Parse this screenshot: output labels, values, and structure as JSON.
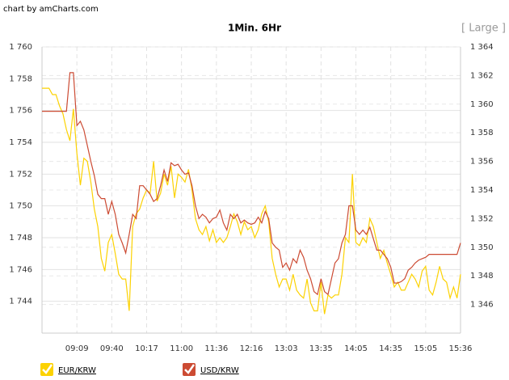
{
  "credit": "chart by amCharts.com",
  "size_button": "[ Large ]",
  "chart_data": {
    "type": "line",
    "title": "1Min. 6Hr",
    "categories": [
      null,
      null,
      null,
      null,
      null,
      null,
      null,
      null,
      null,
      null,
      "09:09",
      null,
      null,
      null,
      null,
      null,
      null,
      null,
      null,
      null,
      "09:40",
      null,
      null,
      null,
      null,
      null,
      null,
      null,
      null,
      null,
      "10:17",
      null,
      null,
      null,
      null,
      null,
      null,
      null,
      null,
      null,
      "11:00",
      null,
      null,
      null,
      null,
      null,
      null,
      null,
      null,
      null,
      "11:36",
      null,
      null,
      null,
      null,
      null,
      null,
      null,
      null,
      null,
      "12:16",
      null,
      null,
      null,
      null,
      null,
      null,
      null,
      null,
      null,
      "13:03",
      null,
      null,
      null,
      null,
      null,
      null,
      null,
      null,
      null,
      "13:35",
      null,
      null,
      null,
      null,
      null,
      null,
      null,
      null,
      null,
      "14:05",
      null,
      null,
      null,
      null,
      null,
      null,
      null,
      null,
      null,
      "14:35",
      null,
      null,
      null,
      null,
      null,
      null,
      null,
      null,
      null,
      "15:05",
      null,
      null,
      null,
      null,
      null,
      null,
      null,
      null,
      null,
      "15:36"
    ],
    "ylim": [
      1742,
      1760
    ],
    "yticks": [
      {
        "value": 1760,
        "label": "1 760"
      },
      {
        "value": 1758,
        "label": "1 758"
      },
      {
        "value": 1756,
        "label": "1 756"
      },
      {
        "value": 1754,
        "label": "1 754"
      },
      {
        "value": 1752,
        "label": "1 752"
      },
      {
        "value": 1750,
        "label": "1 750"
      },
      {
        "value": 1748,
        "label": "1 748"
      },
      {
        "value": 1746,
        "label": "1 746"
      },
      {
        "value": 1744,
        "label": "1 744"
      }
    ],
    "y2lim": [
      1344,
      1364
    ],
    "y2ticks": [
      {
        "value": 1364,
        "label": "1 364"
      },
      {
        "value": 1362,
        "label": "1 362"
      },
      {
        "value": 1360,
        "label": "1 360"
      },
      {
        "value": 1358,
        "label": "1 358"
      },
      {
        "value": 1356,
        "label": "1 356"
      },
      {
        "value": 1354,
        "label": "1 354"
      },
      {
        "value": 1352,
        "label": "1 352"
      },
      {
        "value": 1350,
        "label": "1 350"
      },
      {
        "value": 1348,
        "label": "1 348"
      },
      {
        "value": 1346,
        "label": "1 346"
      }
    ],
    "grid": true,
    "series": [
      {
        "name": "EUR/KRW",
        "color": "#fcd202",
        "values": [
          1757.4,
          1757.4,
          1757.4,
          1757.0,
          1757.0,
          1756.3,
          1755.8,
          1754.8,
          1754.1,
          1756.1,
          1753.3,
          1751.3,
          1753.0,
          1752.8,
          1751.5,
          1749.8,
          1748.7,
          1746.7,
          1745.9,
          1747.7,
          1748.2,
          1747.0,
          1745.7,
          1745.4,
          1745.4,
          1743.4,
          1748.7,
          1749.5,
          1749.8,
          1750.5,
          1751.0,
          1750.8,
          1752.8,
          1750.3,
          1750.8,
          1752.0,
          1751.3,
          1752.5,
          1750.5,
          1752.0,
          1751.8,
          1751.5,
          1752.3,
          1751.0,
          1749.2,
          1748.5,
          1748.2,
          1748.7,
          1747.8,
          1748.5,
          1747.7,
          1748.0,
          1747.7,
          1748.0,
          1748.7,
          1749.5,
          1749.0,
          1748.2,
          1749.0,
          1748.5,
          1748.7,
          1748.0,
          1748.5,
          1749.5,
          1750.0,
          1749.0,
          1746.7,
          1745.7,
          1744.9,
          1745.4,
          1745.4,
          1744.7,
          1745.7,
          1744.7,
          1744.4,
          1744.2,
          1745.4,
          1743.9,
          1743.4,
          1743.4,
          1745.2,
          1743.2,
          1744.4,
          1744.2,
          1744.4,
          1744.4,
          1745.7,
          1748.0,
          1747.7,
          1752.0,
          1747.7,
          1747.5,
          1748.0,
          1747.7,
          1749.2,
          1748.7,
          1747.7,
          1746.7,
          1747.2,
          1746.4,
          1745.7,
          1744.9,
          1745.2,
          1744.7,
          1744.7,
          1745.2,
          1745.7,
          1745.4,
          1744.9,
          1745.9,
          1746.2,
          1744.7,
          1744.4,
          1745.2,
          1746.2,
          1745.4,
          1745.2,
          1744.2,
          1744.9,
          1744.2,
          1745.7
        ]
      },
      {
        "name": "USD/KRW",
        "color": "#cc4b33",
        "axis": "y2",
        "values": [
          1359.5,
          1359.5,
          1359.5,
          1359.5,
          1359.5,
          1359.5,
          1359.5,
          1359.5,
          1362.2,
          1362.2,
          1358.5,
          1358.8,
          1358.2,
          1357.1,
          1356.0,
          1355.0,
          1353.7,
          1353.4,
          1353.4,
          1352.3,
          1353.2,
          1352.3,
          1350.9,
          1350.3,
          1349.6,
          1350.9,
          1352.3,
          1352.0,
          1354.3,
          1354.3,
          1354.0,
          1353.7,
          1353.2,
          1353.4,
          1354.3,
          1355.4,
          1354.6,
          1355.9,
          1355.7,
          1355.8,
          1355.4,
          1355.1,
          1355.2,
          1354.3,
          1352.9,
          1352.0,
          1352.3,
          1352.1,
          1351.7,
          1352.0,
          1352.1,
          1352.6,
          1351.7,
          1351.2,
          1352.3,
          1352.0,
          1352.3,
          1351.7,
          1351.9,
          1351.7,
          1351.6,
          1351.7,
          1352.1,
          1351.7,
          1352.5,
          1352.0,
          1350.3,
          1350.0,
          1349.8,
          1348.6,
          1348.9,
          1348.4,
          1349.2,
          1348.9,
          1349.8,
          1349.3,
          1348.4,
          1347.8,
          1346.9,
          1346.7,
          1347.8,
          1346.9,
          1346.7,
          1347.8,
          1348.9,
          1349.2,
          1350.3,
          1350.9,
          1352.9,
          1352.9,
          1351.2,
          1350.9,
          1351.2,
          1350.9,
          1351.4,
          1350.6,
          1349.8,
          1349.8,
          1349.5,
          1349.2,
          1348.6,
          1347.5,
          1347.5,
          1347.6,
          1347.8,
          1348.4,
          1348.6,
          1348.9,
          1349.1,
          1349.2,
          1349.3,
          1349.5,
          1349.5,
          1349.5,
          1349.5,
          1349.5,
          1349.5,
          1349.5,
          1349.5,
          1349.5,
          1350.3
        ]
      }
    ]
  }
}
